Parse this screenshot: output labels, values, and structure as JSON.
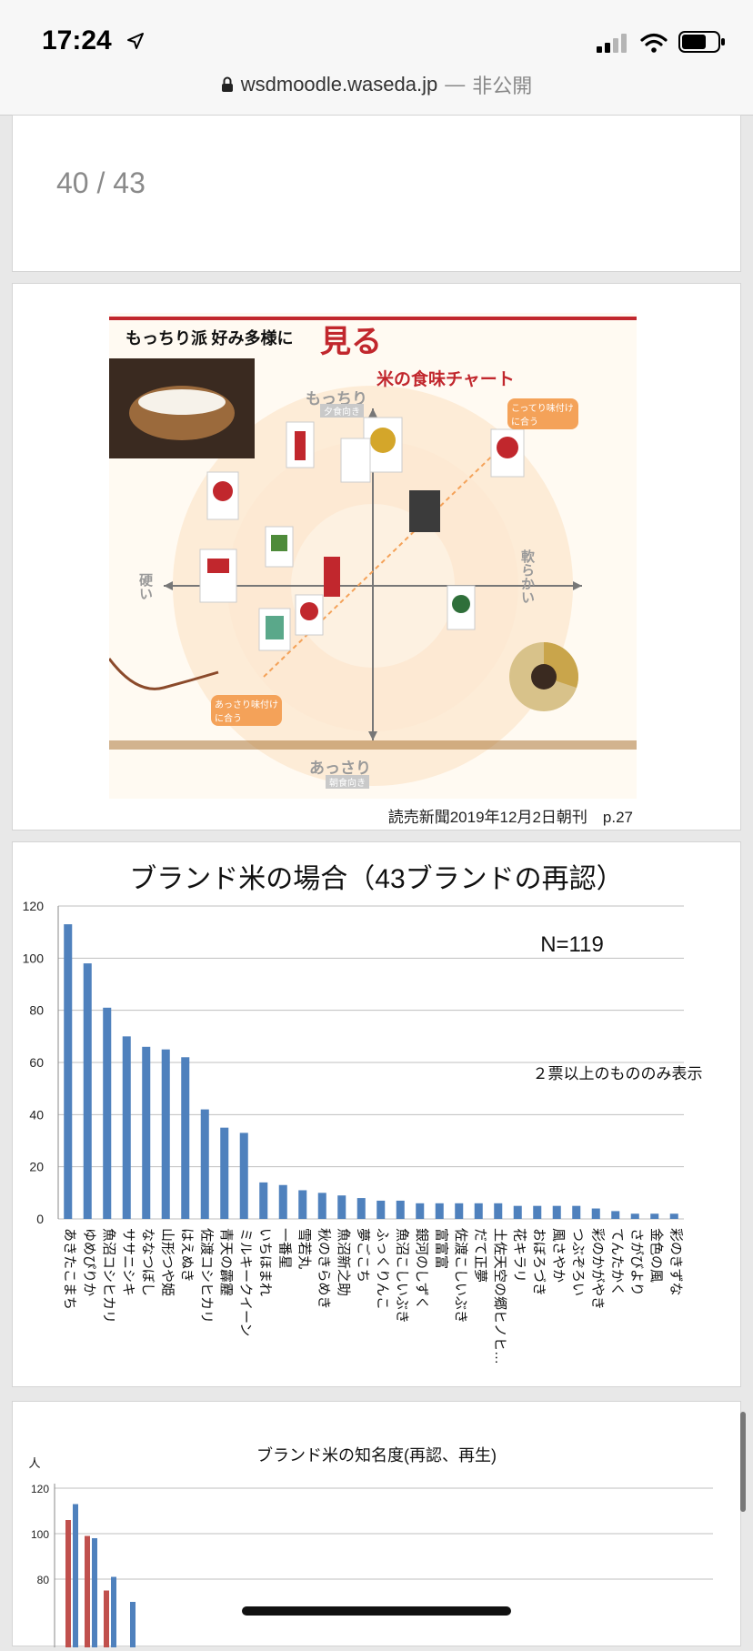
{
  "status": {
    "time": "17:24"
  },
  "browser": {
    "url": "wsdmoodle.waseda.jp",
    "separator": "—",
    "privacy": "非公開"
  },
  "page_indicator": "40 / 43",
  "newspaper": {
    "headline": "もっちり派 好み多様に",
    "title_mark": "見る",
    "chart_title": "米の食味チャート",
    "axis_top": "もっちり",
    "axis_top_sub": "夕食向き",
    "axis_bottom": "あっさり",
    "axis_bottom_sub": "朝食向き",
    "axis_left": "硬い",
    "axis_right": "軟らかい",
    "label_top_right": "こってり味付けに合う",
    "label_bottom_left": "あっさり味付けに合う",
    "caption": "読売新聞2019年12月2日朝刊　p.27"
  },
  "chart_data": [
    {
      "type": "bar",
      "title": "ブランド米の場合（43ブランドの再認）",
      "annotation_n": "N=119",
      "annotation_note": "２票以上のもののみ表示",
      "ylim": [
        0,
        120
      ],
      "yticks": [
        0,
        20,
        40,
        60,
        80,
        100,
        120
      ],
      "grid": true,
      "color": "#4f81bd",
      "categories": [
        "あきたこまち",
        "ゆめぴりか",
        "魚沼コシヒカリ",
        "ササニシキ",
        "ななつぼし",
        "山形つや姫",
        "はえぬき",
        "佐渡コシヒカリ",
        "青天の霹靂",
        "ミルキークイーン",
        "いちほまれ",
        "一番星",
        "雪若丸",
        "秋のきらめき",
        "魚沼新之助",
        "夢ごこち",
        "ふっくりんこ",
        "魚沼こしいぶき",
        "銀河のしずく",
        "富富富",
        "佐渡こしいぶき",
        "だて正夢",
        "土佐天空の郷ヒノヒ…",
        "花キラリ",
        "おぼろづき",
        "風さやか",
        "つぶぞろい",
        "彩のかがやき",
        "てんたかく",
        "さがびより",
        "金色の風",
        "彩のきずな"
      ],
      "values": [
        113,
        98,
        81,
        70,
        66,
        65,
        62,
        42,
        35,
        33,
        14,
        13,
        11,
        10,
        9,
        8,
        7,
        7,
        6,
        6,
        6,
        6,
        6,
        5,
        5,
        5,
        5,
        4,
        3,
        2,
        2,
        2
      ]
    },
    {
      "type": "bar",
      "title": "ブランド米の知名度(再認、再生)",
      "ylabel": "人",
      "ylim_visible": [
        80,
        120
      ],
      "yticks": [
        80,
        100,
        120
      ],
      "grid": true,
      "series": [
        {
          "color": "#c0504d",
          "values": [
            106,
            99,
            75
          ]
        },
        {
          "color": "#4f81bd",
          "values": [
            113,
            98,
            81,
            70
          ]
        }
      ]
    }
  ]
}
